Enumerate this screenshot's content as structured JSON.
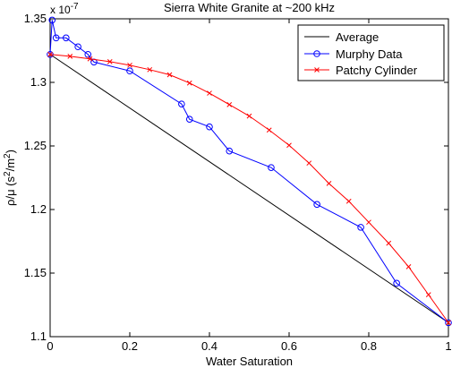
{
  "chart_data": {
    "type": "line",
    "title": "Sierra White Granite at ~200 kHz",
    "xlabel": "Water Saturation",
    "ylabel_main": "ρ/μ (s",
    "ylabel_sup1": "2",
    "ylabel_mid": "/m",
    "ylabel_sup2": "2",
    "ylabel_end": ")",
    "multiplier_base": "x 10",
    "multiplier_exp": "-7",
    "xlim": [
      0,
      1
    ],
    "ylim": [
      1.1,
      1.35
    ],
    "xticks": [
      0,
      0.2,
      0.4,
      0.6,
      0.8,
      1
    ],
    "xtick_labels": [
      "0",
      "0.2",
      "0.4",
      "0.6",
      "0.8",
      "1"
    ],
    "yticks": [
      1.1,
      1.15,
      1.2,
      1.25,
      1.3,
      1.35
    ],
    "ytick_labels": [
      "1.1",
      "1.15",
      "1.2",
      "1.25",
      "1.3",
      "1.35"
    ],
    "grid": false,
    "legend_position": "top-right",
    "series": [
      {
        "name": "Average",
        "color": "#000000",
        "marker": "none",
        "x": [
          0,
          1
        ],
        "y": [
          1.322,
          1.111
        ]
      },
      {
        "name": "Murphy Data",
        "color": "#0000ff",
        "marker": "circle",
        "x": [
          0,
          0.005,
          0.015,
          0.04,
          0.07,
          0.095,
          0.11,
          0.2,
          0.33,
          0.35,
          0.4,
          0.45,
          0.555,
          0.67,
          0.78,
          0.87,
          1
        ],
        "y": [
          1.322,
          1.349,
          1.335,
          1.335,
          1.328,
          1.322,
          1.316,
          1.309,
          1.283,
          1.271,
          1.265,
          1.246,
          1.233,
          1.204,
          1.186,
          1.142,
          1.111
        ]
      },
      {
        "name": "Patchy Cylinder",
        "color": "#ff0000",
        "marker": "x",
        "x": [
          0,
          0.05,
          0.1,
          0.15,
          0.2,
          0.25,
          0.3,
          0.35,
          0.4,
          0.45,
          0.5,
          0.55,
          0.6,
          0.65,
          0.7,
          0.75,
          0.8,
          0.85,
          0.9,
          0.95,
          1
        ],
        "y": [
          1.322,
          1.3205,
          1.3185,
          1.3163,
          1.3135,
          1.31,
          1.306,
          1.2995,
          1.2915,
          1.2825,
          1.2735,
          1.2625,
          1.2505,
          1.2365,
          1.2205,
          1.2065,
          1.19,
          1.1735,
          1.155,
          1.133,
          1.111
        ]
      }
    ]
  }
}
